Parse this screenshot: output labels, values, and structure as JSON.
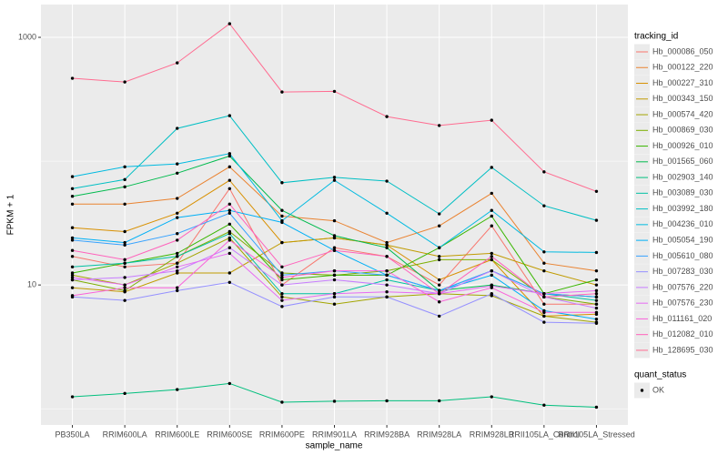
{
  "chart_data": {
    "type": "line",
    "x_label": "sample_name",
    "y_label": "FPKM + 1",
    "log_y": true,
    "grid": true,
    "background": "#EBEBEB",
    "point_color": "#000000",
    "ylim": [
      0.74,
      1840
    ],
    "yticks": [
      10,
      1000
    ],
    "minor_yticks": [
      1,
      100
    ],
    "categories": [
      "PB350LA",
      "RRIM600LA",
      "RRIM600LE",
      "RRIM600SE",
      "RRIM600PE",
      "RRIM901LA",
      "RRIM928BA",
      "RRIM928LA",
      "RRIM928LB",
      "RRII105LA_Control",
      "RRII105LA_Stressed"
    ],
    "legend_title": "tracking_id",
    "legend_position": "right",
    "point_legend": {
      "title": "quant_status",
      "labels": [
        "OK"
      ]
    },
    "series": [
      {
        "name": "Hb_000086_050",
        "color": "#F8766D",
        "values": [
          17,
          14,
          15,
          60,
          10,
          20,
          17,
          10,
          30,
          7,
          7
        ]
      },
      {
        "name": "Hb_000122_220",
        "color": "#EA8331",
        "values": [
          45,
          45,
          50,
          90,
          36,
          33,
          22,
          30,
          55,
          15,
          13
        ]
      },
      {
        "name": "Hb_000227_310",
        "color": "#D89000",
        "values": [
          29,
          27,
          38,
          70,
          22,
          24,
          21,
          11,
          16,
          5.6,
          5.8
        ]
      },
      {
        "name": "Hb_000343_150",
        "color": "#C09B00",
        "values": [
          9.5,
          8.8,
          12.5,
          12.5,
          22,
          24,
          21,
          17,
          18,
          13,
          10
        ]
      },
      {
        "name": "Hb_000574_420",
        "color": "#A3A500",
        "values": [
          12,
          10,
          15,
          24,
          8,
          7,
          8,
          8.5,
          8.2,
          5.6,
          5
        ]
      },
      {
        "name": "Hb_000869_030",
        "color": "#7CAE00",
        "values": [
          11,
          9,
          17,
          27,
          12.5,
          12,
          13,
          16,
          16,
          8,
          7
        ]
      },
      {
        "name": "Hb_000926_010",
        "color": "#39B600",
        "values": [
          12.5,
          15,
          18,
          31,
          11,
          12,
          12,
          20,
          36,
          8.5,
          11
        ]
      },
      {
        "name": "Hb_001565_060",
        "color": "#00BB4E",
        "values": [
          52,
          62,
          80,
          110,
          40,
          25,
          20,
          9,
          10,
          8.5,
          8
        ]
      },
      {
        "name": "Hb_002903_140",
        "color": "#00BF7D",
        "values": [
          1.25,
          1.33,
          1.43,
          1.6,
          1.13,
          1.15,
          1.16,
          1.16,
          1.25,
          1.07,
          1.03
        ]
      },
      {
        "name": "Hb_003089_030",
        "color": "#00C1A3",
        "values": [
          14,
          15,
          17,
          26,
          8.5,
          8.5,
          11,
          9,
          13,
          8.5,
          7.5
        ]
      },
      {
        "name": "Hb_003992_180",
        "color": "#00BFC4",
        "values": [
          60,
          71,
          184,
          233,
          67,
          74,
          69,
          37.5,
          89,
          43.6,
          33.3
        ]
      },
      {
        "name": "Hb_004236_010",
        "color": "#00BAE0",
        "values": [
          75,
          90,
          95,
          115,
          33,
          70,
          38,
          20,
          40,
          18.5,
          18.3
        ]
      },
      {
        "name": "Hb_005054_190",
        "color": "#00B0F6",
        "values": [
          24,
          22,
          35,
          40,
          32,
          19,
          12,
          9,
          12,
          6.2,
          5.3
        ]
      },
      {
        "name": "Hb_005610_080",
        "color": "#35A2FF",
        "values": [
          23,
          21,
          26,
          38,
          12,
          13,
          12,
          9,
          13,
          8.5,
          8
        ]
      },
      {
        "name": "Hb_007283_030",
        "color": "#9590FF",
        "values": [
          8,
          7.5,
          9,
          10.5,
          6.7,
          8,
          8,
          5.6,
          8.5,
          5,
          4.9
        ]
      },
      {
        "name": "Hb_007576_220",
        "color": "#C77CFF",
        "values": [
          11,
          11.5,
          13,
          20,
          10,
          11,
          10,
          8.5,
          13,
          8,
          6.5
        ]
      },
      {
        "name": "Hb_007576_230",
        "color": "#E76BF3",
        "values": [
          11.5,
          10,
          14,
          18,
          7.5,
          8.5,
          8.8,
          8.5,
          9.8,
          8.5,
          9
        ]
      },
      {
        "name": "Hb_011161_020",
        "color": "#FA62DB",
        "values": [
          8.2,
          9.5,
          9.5,
          23,
          11.5,
          13,
          13,
          7.3,
          9.5,
          6,
          6
        ]
      },
      {
        "name": "Hb_012082_010",
        "color": "#FF62BC",
        "values": [
          19,
          16,
          23,
          45,
          14,
          19,
          17,
          8.5,
          17,
          8,
          8.5
        ]
      },
      {
        "name": "Hb_128695_030",
        "color": "#FF6C91",
        "values": [
          467,
          436,
          622,
          1288,
          362,
          366,
          229,
          194,
          214,
          82,
          57
        ]
      }
    ]
  }
}
